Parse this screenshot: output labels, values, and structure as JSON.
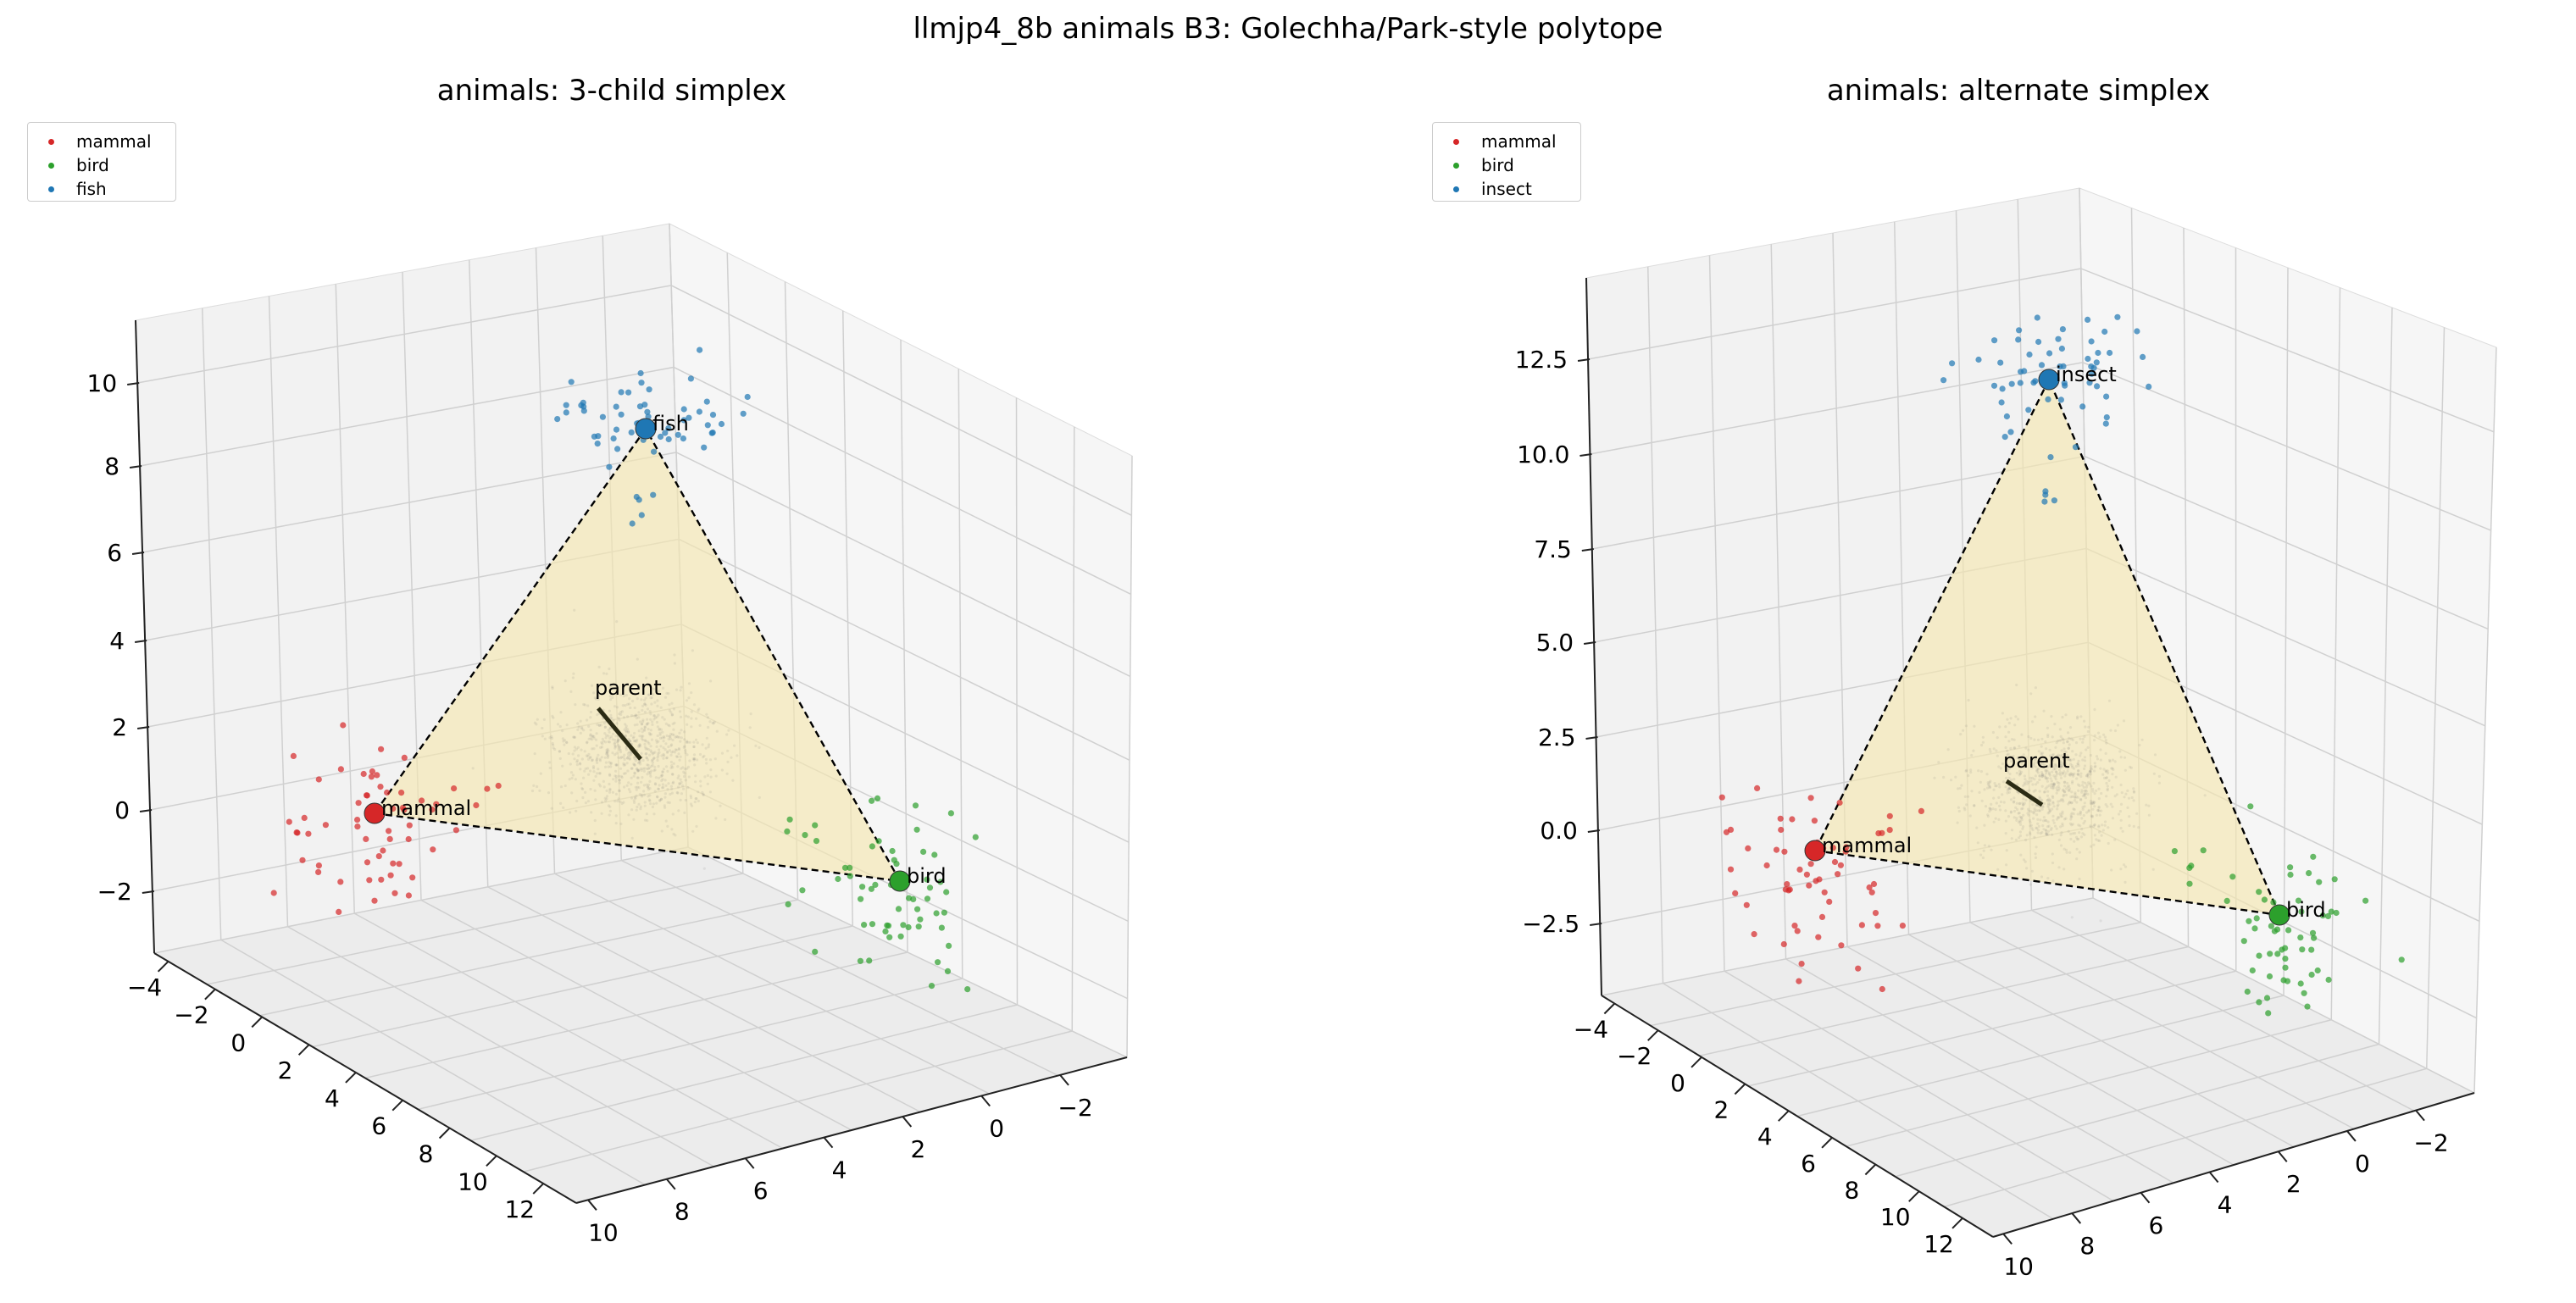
{
  "figure": {
    "suptitle": "llmjp4_8b animals B3: Golechha/Park-style polytope"
  },
  "chart_data": [
    {
      "type": "scatter3d",
      "title": "animals: 3-child simplex",
      "legend": {
        "placement": "top-left",
        "entries": [
          {
            "name": "mammal",
            "color": "#d62728"
          },
          {
            "name": "bird",
            "color": "#2ca02c"
          },
          {
            "name": "fish",
            "color": "#1f77b4"
          }
        ]
      },
      "z_ticks": [
        "10",
        "8",
        "6",
        "4",
        "2",
        "0",
        "−2"
      ],
      "x_ticks": [
        "−4",
        "−2",
        "0",
        "2",
        "4",
        "6",
        "8",
        "10",
        "12"
      ],
      "y_ticks": [
        "10",
        "8",
        "6",
        "4",
        "2",
        "0",
        "−2"
      ],
      "vertices": [
        {
          "label": "mammal",
          "color": "#d62728",
          "pos": [
            0,
            0,
            0
          ]
        },
        {
          "label": "bird",
          "color": "#2ca02c",
          "pos": [
            10,
            0,
            0
          ]
        },
        {
          "label": "fish",
          "color": "#1f77b4",
          "pos": [
            0,
            10,
            0
          ]
        }
      ],
      "parent_label": "parent",
      "simplex_color": "#f5e6b0",
      "grid": true
    },
    {
      "type": "scatter3d",
      "title": "animals: alternate simplex",
      "legend": {
        "placement": "top-left",
        "entries": [
          {
            "name": "mammal",
            "color": "#d62728"
          },
          {
            "name": "bird",
            "color": "#2ca02c"
          },
          {
            "name": "insect",
            "color": "#1f77b4"
          }
        ]
      },
      "z_ticks": [
        "12.5",
        "10.0",
        "7.5",
        "5.0",
        "2.5",
        "0.0",
        "−2.5"
      ],
      "x_ticks": [
        "−4",
        "−2",
        "0",
        "2",
        "4",
        "6",
        "8",
        "10",
        "12"
      ],
      "y_ticks": [
        "10",
        "8",
        "6",
        "4",
        "2",
        "0",
        "−2"
      ],
      "vertices": [
        {
          "label": "mammal",
          "color": "#d62728",
          "pos": [
            0,
            0,
            0
          ]
        },
        {
          "label": "bird",
          "color": "#2ca02c",
          "pos": [
            10,
            0,
            0
          ]
        },
        {
          "label": "insect",
          "color": "#1f77b4",
          "pos": [
            0,
            10,
            0
          ]
        }
      ],
      "parent_label": "parent",
      "simplex_color": "#f5e6b0",
      "grid": true
    }
  ]
}
